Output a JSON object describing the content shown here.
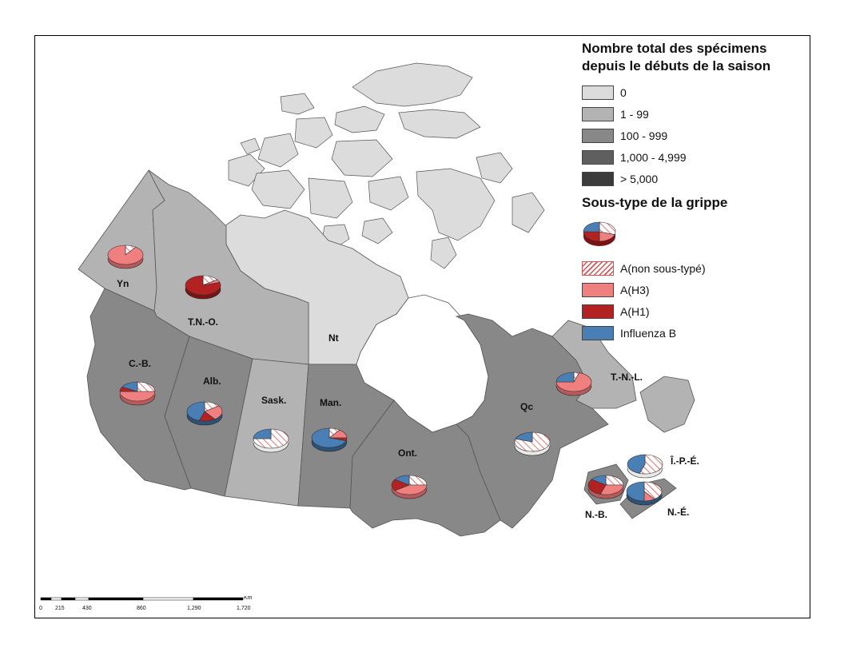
{
  "legend": {
    "title_line1": "Nombre total des spécimens",
    "title_line2": "depuis le débuts de la saison",
    "classes": [
      {
        "label": "0",
        "color": "#dcdcdc"
      },
      {
        "label": "1 - 99",
        "color": "#b3b3b3"
      },
      {
        "label": "100 - 999",
        "color": "#888888"
      },
      {
        "label": "1,000 - 4,999",
        "color": "#5f5f5f"
      },
      {
        "label": "> 5,000",
        "color": "#3c3c3c"
      }
    ],
    "subtype_title": "Sous-type de la grippe",
    "subtypes": [
      {
        "label": "A(non sous-typé)",
        "color": "#ffffff",
        "pattern": "hatch-red"
      },
      {
        "label": "A(H3)",
        "color": "#f08080"
      },
      {
        "label": "A(H1)",
        "color": "#b22222"
      },
      {
        "label": "Influenza B",
        "color": "#4a7fb5"
      }
    ]
  },
  "regions": [
    {
      "id": "yn",
      "label": "Yn",
      "color": "#b3b3b3",
      "pie": [
        0.1,
        0.9,
        0,
        0
      ]
    },
    {
      "id": "tno",
      "label": "T.N.-O.",
      "color": "#b3b3b3",
      "pie": [
        0.15,
        0.05,
        0.8,
        0
      ]
    },
    {
      "id": "nt",
      "label": "Nt",
      "color": "#dcdcdc",
      "pie": null
    },
    {
      "id": "cb",
      "label": "C.-B.",
      "color": "#888888",
      "pie": [
        0.25,
        0.5,
        0.08,
        0.17
      ]
    },
    {
      "id": "alb",
      "label": "Alb.",
      "color": "#888888",
      "pie": [
        0.15,
        0.25,
        0.15,
        0.45
      ]
    },
    {
      "id": "sask",
      "label": "Sask.",
      "color": "#b3b3b3",
      "pie": [
        0.75,
        0,
        0,
        0.25
      ]
    },
    {
      "id": "man",
      "label": "Man.",
      "color": "#888888",
      "pie": [
        0.1,
        0.15,
        0.05,
        0.7
      ]
    },
    {
      "id": "ont",
      "label": "Ont.",
      "color": "#888888",
      "pie": [
        0.25,
        0.4,
        0.2,
        0.15
      ]
    },
    {
      "id": "qc",
      "label": "Qc",
      "color": "#888888",
      "pie": [
        0.8,
        0,
        0,
        0.2
      ]
    },
    {
      "id": "tnl",
      "label": "T.-N.-L.",
      "color": "#b3b3b3",
      "pie": [
        0.05,
        0.7,
        0,
        0.25
      ]
    },
    {
      "id": "ipe",
      "label": "Î.-P.-É.",
      "color": "#b3b3b3",
      "pie": [
        0.55,
        0,
        0,
        0.45
      ]
    },
    {
      "id": "nb",
      "label": "N.-B.",
      "color": "#888888",
      "pie": [
        0.25,
        0.3,
        0.3,
        0.15
      ]
    },
    {
      "id": "ne",
      "label": "N.-É.",
      "color": "#888888",
      "pie": [
        0.4,
        0.1,
        0,
        0.5
      ]
    }
  ],
  "scale": {
    "unit": "Km",
    "ticks": [
      "0",
      "215",
      "430",
      "860",
      "1,290",
      "1,720"
    ]
  }
}
